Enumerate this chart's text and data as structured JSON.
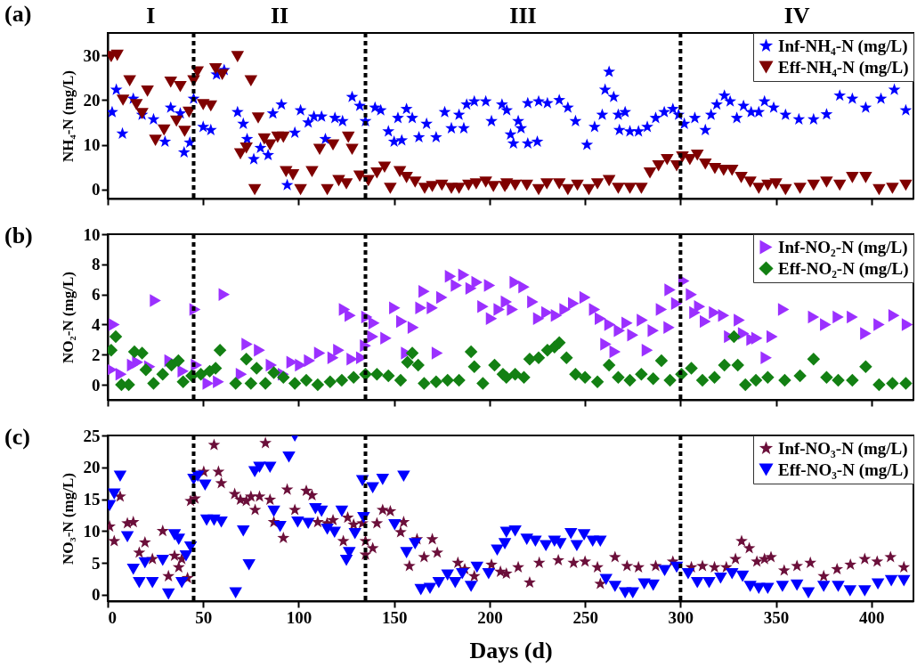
{
  "chart_data": [
    {
      "type": "scatter",
      "title": "(a)",
      "ylabel": "NH₄-N (mg/L)",
      "xlim": [
        0,
        422
      ],
      "xticks": [
        0,
        50,
        100,
        150,
        200,
        250,
        300,
        350,
        400
      ],
      "ylim": [
        -2,
        35
      ],
      "yticks": [
        0,
        10,
        20,
        30
      ],
      "tick_labels": "y",
      "legend": "top right",
      "grid": false,
      "annotations": [
        "I",
        "II",
        "III",
        "IV"
      ],
      "ref_lines": [
        {
          "axis": "x",
          "value": 45,
          "label": null,
          "color": "#000000",
          "line_style": "dashed"
        },
        {
          "axis": "x",
          "value": 135,
          "label": null,
          "color": "#000000",
          "line_style": "dashed"
        },
        {
          "axis": "x",
          "value": 300,
          "label": null,
          "color": "#000000",
          "line_style": "dashed"
        }
      ],
      "series": [
        {
          "name": "Inf-NH₄-N (mg/L)",
          "color": "#0000ff",
          "marker": "star",
          "x": [
            2.3,
            4.5,
            7.7,
            13.4,
            18,
            24,
            30,
            33,
            38,
            40,
            43,
            45,
            50,
            54,
            57,
            61,
            68,
            71,
            73,
            76.5,
            80,
            84,
            86.5,
            91,
            94,
            98,
            101,
            105,
            108,
            112,
            114,
            119,
            123,
            128,
            132,
            135,
            140,
            143,
            147,
            150,
            152,
            154,
            156.5,
            159.5,
            163,
            167,
            172,
            176.5,
            180,
            184,
            186.5,
            188,
            192,
            198,
            201,
            206.5,
            209,
            211,
            212.5,
            215,
            216.5,
            220,
            220,
            225,
            225.7,
            230.3,
            236.5,
            241,
            245,
            251,
            255,
            259,
            260.5,
            262.6,
            265,
            267.4,
            268,
            271,
            273.5,
            278,
            282.6,
            287,
            291.5,
            296,
            299,
            302,
            307.5,
            313,
            316,
            319,
            323,
            326,
            329.5,
            333,
            337,
            341,
            344,
            348.8,
            355,
            362,
            369.7,
            376.5,
            383.4,
            390,
            397,
            405,
            412,
            418
          ],
          "values": [
            17.3,
            22.3,
            12.5,
            20.3,
            16.7,
            15.7,
            10.7,
            18.3,
            17,
            8.3,
            10.5,
            20.3,
            14,
            13.3,
            25.7,
            26.7,
            17.3,
            14.7,
            11.3,
            6.8,
            9.3,
            7.7,
            17,
            19,
            1,
            12.7,
            17.7,
            15,
            16.3,
            16.3,
            11.3,
            16,
            15.3,
            20.7,
            18.7,
            15.3,
            18.3,
            17.7,
            13,
            10.7,
            16,
            11,
            18,
            16,
            11.7,
            14.7,
            11.7,
            17.3,
            13.7,
            16.7,
            13.7,
            19,
            19.7,
            19.7,
            15.3,
            19,
            17.7,
            12.3,
            10.3,
            15.3,
            13.7,
            10.3,
            19.3,
            10.7,
            19.7,
            19.3,
            20,
            18.3,
            15.3,
            10,
            14,
            16.7,
            22.3,
            26.3,
            20.7,
            16.7,
            13.3,
            17.3,
            13,
            13,
            14,
            16,
            17.3,
            18,
            16.7,
            14.7,
            16,
            13.3,
            16.7,
            19,
            21,
            19.7,
            16,
            18.7,
            17.3,
            17.3,
            19.7,
            18.3,
            16.7,
            15.7,
            15.7,
            16.8,
            21,
            20.3,
            18.3,
            20.3,
            22.3,
            17.7
          ]
        },
        {
          "name": "Eff-NH₄-N (mg/L)",
          "color": "#7f0000",
          "marker": "triangle-down",
          "x": [
            1.8,
            5,
            8,
            11.5,
            15,
            18,
            20.8,
            25,
            29.5,
            33,
            36,
            38,
            40.3,
            42.6,
            45,
            47,
            50,
            54,
            56.5,
            60,
            68,
            75,
            69.5,
            72.6,
            77,
            78.8,
            82,
            85,
            89,
            92,
            93.4,
            97,
            101,
            107,
            111,
            115,
            118,
            121,
            125,
            126,
            128,
            132,
            136.5,
            141,
            145,
            148,
            153,
            156.5,
            161,
            166,
            170,
            175,
            180,
            184,
            189,
            193,
            198,
            202,
            208,
            209,
            213.4,
            219.5,
            225.7,
            230,
            236.5,
            241,
            246,
            252,
            256.5,
            262.6,
            267.4,
            273.5,
            279.5,
            284,
            288.5,
            293,
            298,
            301,
            304.9,
            308.8,
            313,
            318,
            322.6,
            327,
            331.8,
            336.5,
            341,
            345.7,
            350,
            355,
            362.6,
            369.7,
            376.5,
            383.4,
            390,
            397,
            404,
            411,
            418
          ],
          "values": [
            29.7,
            30,
            20,
            24.3,
            19,
            17,
            22,
            11,
            13.3,
            24,
            15.3,
            23,
            13,
            17.3,
            24.3,
            26.3,
            19,
            18.7,
            27,
            25.7,
            29.7,
            24.3,
            8,
            9.3,
            0,
            16,
            11.3,
            10,
            11.7,
            11.7,
            4,
            3.3,
            0,
            4,
            9,
            0,
            10,
            2,
            1.3,
            11.7,
            9,
            3,
            2,
            3.7,
            5,
            0.3,
            4,
            2.7,
            1.7,
            0.3,
            0.7,
            1,
            0.3,
            0.3,
            1,
            1.3,
            1.7,
            0.7,
            0.7,
            1.3,
            1,
            1,
            0,
            1.3,
            1.3,
            0,
            1,
            0,
            1.3,
            2,
            0.3,
            0.3,
            0.3,
            3.7,
            5.3,
            6.7,
            5.3,
            7.3,
            6.7,
            7.7,
            5.7,
            4.7,
            4.3,
            4.3,
            2.7,
            1.7,
            0.3,
            1,
            1.3,
            0,
            0.3,
            1,
            1.7,
            1,
            2.7,
            2.7,
            0,
            0.3,
            1
          ]
        }
      ]
    },
    {
      "type": "scatter",
      "title": "(b)",
      "ylabel": "NO₂-N (mg/L)",
      "xlim": [
        0,
        422
      ],
      "xticks": [
        0,
        50,
        100,
        150,
        200,
        250,
        300,
        350,
        400
      ],
      "ylim": [
        -1,
        10
      ],
      "yticks": [
        0,
        2,
        4,
        6,
        8,
        10
      ],
      "tick_labels": "y",
      "legend": "top right",
      "grid": false,
      "ref_lines": [
        {
          "axis": "x",
          "value": 45,
          "label": null,
          "color": "#000000",
          "line_style": "dashed"
        },
        {
          "axis": "x",
          "value": 135,
          "label": null,
          "color": "#000000",
          "line_style": "dashed"
        },
        {
          "axis": "x",
          "value": 300,
          "label": null,
          "color": "#000000",
          "line_style": "dashed"
        }
      ],
      "series": [
        {
          "name": "Inf-NO₂-N (mg/L)",
          "color": "#9b30ff",
          "marker": "triangle-right",
          "x": [
            3.4,
            2,
            7,
            13,
            15.7,
            22,
            25,
            32.6,
            39.5,
            45.7,
            46.5,
            52.6,
            58,
            61,
            70,
            73,
            79.5,
            85.7,
            92,
            96.5,
            101,
            105.7,
            111,
            118,
            121,
            124,
            127,
            128,
            133,
            135,
            135.7,
            139.5,
            138.8,
            145.7,
            150.3,
            154,
            156.5,
            160,
            164,
            165.7,
            170,
            172.6,
            175,
            179.5,
            182.6,
            186.5,
            190.3,
            193.4,
            196.5,
            200,
            201,
            205,
            208.8,
            212,
            213.4,
            218,
            222.6,
            225.7,
            230,
            235,
            239.5,
            244,
            250,
            255,
            258,
            260.9,
            265.7,
            263,
            268,
            272,
            275,
            280,
            282.6,
            285.7,
            290,
            294,
            294.5,
            298,
            301.8,
            305.7,
            307.5,
            310,
            313,
            317.8,
            322.6,
            325.7,
            330.8,
            333,
            337.4,
            340,
            344.9,
            348,
            354,
            369.7,
            376,
            382.6,
            390,
            397,
            404,
            411.8,
            418.8
          ],
          "values": [
            4,
            1,
            0.7,
            1.3,
            1.5,
            1.2,
            5.6,
            1.6,
            0.9,
            5,
            1.3,
            0.1,
            0.2,
            6,
            0.7,
            2.7,
            2.3,
            1.3,
            0.7,
            1.5,
            1.3,
            1.6,
            2.1,
            1.8,
            2.3,
            5,
            4.6,
            1.7,
            1.8,
            2.6,
            4.5,
            4.1,
            3.2,
            3.1,
            5.1,
            4.2,
            2.1,
            3.8,
            5.1,
            6.2,
            5.1,
            2.1,
            5.8,
            7.2,
            6.6,
            7.3,
            6.4,
            6.8,
            5.2,
            6.6,
            4.4,
            5,
            5.5,
            5,
            6.8,
            6.5,
            5.5,
            4.4,
            4.8,
            4.6,
            5,
            5.4,
            5.8,
            5,
            4.4,
            2.7,
            2.2,
            4,
            3.6,
            4.1,
            3.3,
            4.3,
            2.3,
            3.6,
            5,
            3.8,
            6.3,
            5.4,
            6.9,
            6,
            4.8,
            5.2,
            4.2,
            4.8,
            4.6,
            3.2,
            4.3,
            3.4,
            3,
            3.1,
            1.8,
            3.2,
            5,
            4.5,
            4,
            4.5,
            4.5,
            3.4,
            4,
            4.6,
            4
          ]
        },
        {
          "name": "Eff-NO₂-N (mg/L)",
          "color": "#138013",
          "marker": "diamond",
          "x": [
            1.8,
            4.2,
            7.2,
            11,
            14,
            18,
            20,
            24,
            28.8,
            33.4,
            37,
            39.5,
            44,
            48.8,
            53.4,
            56.5,
            58.8,
            67,
            72.6,
            75,
            78,
            82.6,
            87,
            92,
            98,
            104,
            110,
            116.5,
            122.6,
            128.8,
            135,
            141,
            147,
            153.4,
            157,
            159.5,
            162.6,
            165.7,
            172,
            178,
            184,
            190.3,
            192,
            196.5,
            202.6,
            207,
            208.8,
            213.4,
            218,
            221,
            225.7,
            230.3,
            234,
            236.5,
            240.3,
            245,
            250,
            256.5,
            262.6,
            267.4,
            273.5,
            279.5,
            285.7,
            290,
            294.5,
            300.5,
            305.7,
            311.5,
            317.8,
            323,
            328,
            330,
            334,
            339.5,
            345.7,
            354.6,
            362.6,
            369.7,
            376.5,
            382.6,
            390,
            397,
            404,
            411,
            418
          ],
          "values": [
            2.3,
            3.2,
            0,
            0,
            2.2,
            2.1,
            1,
            0.1,
            0.7,
            1.3,
            1.6,
            0.2,
            0.6,
            0.7,
            0.9,
            1.1,
            2.3,
            0.1,
            1.7,
            0.1,
            1.1,
            0.1,
            0.8,
            0.5,
            0.1,
            0.3,
            0,
            0.2,
            0.3,
            0.5,
            0.7,
            0.7,
            0.6,
            0.3,
            1.5,
            2.1,
            1.3,
            0.1,
            0.2,
            0.3,
            0.3,
            2.2,
            1.2,
            0.1,
            1.3,
            0.7,
            0.5,
            0.7,
            0.5,
            1.7,
            1.8,
            2.3,
            2.5,
            2.8,
            1.8,
            0.7,
            0.5,
            0.2,
            1.3,
            0.5,
            0.3,
            0.7,
            0.4,
            1.6,
            0.3,
            0.7,
            1.1,
            0.3,
            0.5,
            1.3,
            3.2,
            1.3,
            0,
            0.3,
            0.5,
            0.3,
            0.6,
            1.7,
            0.5,
            0.3,
            0.3,
            1.2,
            0,
            0.1,
            0.1
          ]
        }
      ]
    },
    {
      "type": "scatter",
      "title": "(c)",
      "ylabel": "NO₃-N (mg/L)",
      "xlabel": "Days (d)",
      "xlim": [
        0,
        422
      ],
      "xticks": [
        0,
        50,
        100,
        150,
        200,
        250,
        300,
        350,
        400
      ],
      "ylim": [
        -1,
        25
      ],
      "yticks": [
        0,
        5,
        10,
        15,
        20,
        25
      ],
      "legend": "top right",
      "grid": false,
      "ref_lines": [
        {
          "axis": "x",
          "value": 45,
          "label": null,
          "color": "#000000",
          "line_style": "dashed"
        },
        {
          "axis": "x",
          "value": 135,
          "label": null,
          "color": "#000000",
          "line_style": "dashed"
        },
        {
          "axis": "x",
          "value": 300,
          "label": null,
          "color": "#000000",
          "line_style": "dashed"
        }
      ],
      "series": [
        {
          "name": "Inf-NO₃-N (mg/L)",
          "color": "#6b0f3a",
          "marker": "star",
          "x": [
            1,
            3.4,
            6.5,
            10.3,
            13.4,
            16.5,
            19.5,
            23.4,
            28.8,
            31.8,
            35,
            37.2,
            38.8,
            41.8,
            43.4,
            45.7,
            50.3,
            55.7,
            58,
            59.5,
            66.5,
            69.5,
            72.6,
            75,
            77.2,
            79.5,
            82.6,
            85,
            87,
            92,
            94,
            98,
            104,
            107,
            110,
            114.9,
            118,
            123.4,
            125.7,
            128.8,
            133.4,
            135,
            135,
            138.8,
            141,
            144,
            148,
            153.4,
            155,
            158,
            162,
            165.7,
            170,
            172.6,
            183.4,
            187,
            192,
            201,
            205.7,
            208.8,
            215,
            221,
            226,
            236,
            244,
            250,
            256.5,
            258,
            265.7,
            272,
            278,
            287,
            296,
            305.7,
            311.5,
            317.8,
            324,
            328.8,
            332,
            336,
            340,
            344,
            347.4,
            354.3,
            361,
            368,
            375,
            382,
            389,
            396.5,
            403,
            410,
            417
          ],
          "values": [
            10.7,
            8.4,
            15.4,
            11.2,
            11.4,
            6.6,
            8.2,
            5.6,
            10,
            2.9,
            6.1,
            4.3,
            5.6,
            2.6,
            14.7,
            15.1,
            19.3,
            23.5,
            19.3,
            17.5,
            15.8,
            14.9,
            14.7,
            15.4,
            13.3,
            15.4,
            23.8,
            14.9,
            11.4,
            8.9,
            16.5,
            13.3,
            16.3,
            15.6,
            11.4,
            11.2,
            11.7,
            8.4,
            12.1,
            11,
            11.2,
            8.4,
            6.3,
            7.3,
            11.2,
            13.3,
            13.1,
            9.8,
            11.4,
            4.5,
            8.7,
            5.9,
            8.7,
            6.6,
            5,
            4,
            2.9,
            4.7,
            3.6,
            3.3,
            4.3,
            1.9,
            5,
            5.4,
            5,
            5.2,
            4.3,
            1.7,
            5.9,
            4.5,
            4.3,
            4.5,
            5.2,
            4.3,
            4.5,
            4.3,
            4.3,
            5.6,
            8.4,
            7.3,
            5.2,
            5.6,
            5.9,
            3.8,
            4.5,
            5,
            2.9,
            4,
            4.7,
            5.6,
            5.2,
            5.9,
            4.3
          ]
        },
        {
          "name": "Eff-NO₃-N (mg/L)",
          "color": "#0000ff",
          "marker": "triangle-down",
          "x": [
            1,
            3.4,
            6.5,
            10.3,
            13.4,
            16.5,
            19.5,
            23.4,
            28.8,
            31.8,
            35,
            37.2,
            38.8,
            41,
            43.4,
            45,
            47.2,
            51,
            51.8,
            55.7,
            59.5,
            67,
            71,
            74,
            77,
            79.5,
            85,
            94.9,
            98,
            87,
            90.3,
            99.5,
            105,
            108.8,
            112,
            115,
            118.8,
            122.6,
            125,
            126.5,
            129.5,
            133.4,
            134,
            138.8,
            144,
            150.3,
            155,
            156.5,
            161,
            164,
            168.8,
            173.4,
            178,
            182,
            185.7,
            190.3,
            193.4,
            199.5,
            204,
            208.8,
            208,
            213.4,
            219.5,
            224,
            229.5,
            234,
            237,
            242.6,
            245.7,
            249.5,
            254,
            258,
            261,
            265.7,
            271,
            275,
            281,
            285.7,
            291.7,
            298,
            304,
            308.8,
            315,
            321,
            327,
            332.5,
            336.5,
            341,
            345.7,
            353.4,
            361,
            367,
            375,
            382.6,
            388.8,
            396.5,
            403.4,
            410.4,
            417
          ],
          "values": [
            14,
            15.8,
            18.6,
            9.1,
            4,
            1.9,
            5,
            1.9,
            5.4,
            0.1,
            9.4,
            8.7,
            1.9,
            6.1,
            7.5,
            18.1,
            18.6,
            17.2,
            11.7,
            11.7,
            11.4,
            0.3,
            10,
            4.7,
            19.3,
            20,
            20,
            21.6,
            24.9,
            13.1,
            10.7,
            11.4,
            11.2,
            13.5,
            13.1,
            10.3,
            9.8,
            13.1,
            5.4,
            6.6,
            9.6,
            17.9,
            12.1,
            16.8,
            18.1,
            11,
            18.6,
            6.6,
            8,
            0.8,
            1,
            1.9,
            3.1,
            1.9,
            3.3,
            1.3,
            4.3,
            3.3,
            7,
            9.8,
            8,
            10,
            8.7,
            8.4,
            7.7,
            8.4,
            8,
            9.6,
            7.7,
            9.4,
            8.4,
            8.4,
            2.4,
            1.3,
            0.3,
            0.3,
            1.7,
            1.5,
            3.8,
            4.3,
            3.3,
            1.9,
            1.9,
            2.6,
            3.3,
            2.9,
            1.3,
            1,
            1,
            1.3,
            1.5,
            0.3,
            1.3,
            1.3,
            0.6,
            0.6,
            1.7,
            2.2,
            2.2
          ]
        }
      ]
    }
  ]
}
